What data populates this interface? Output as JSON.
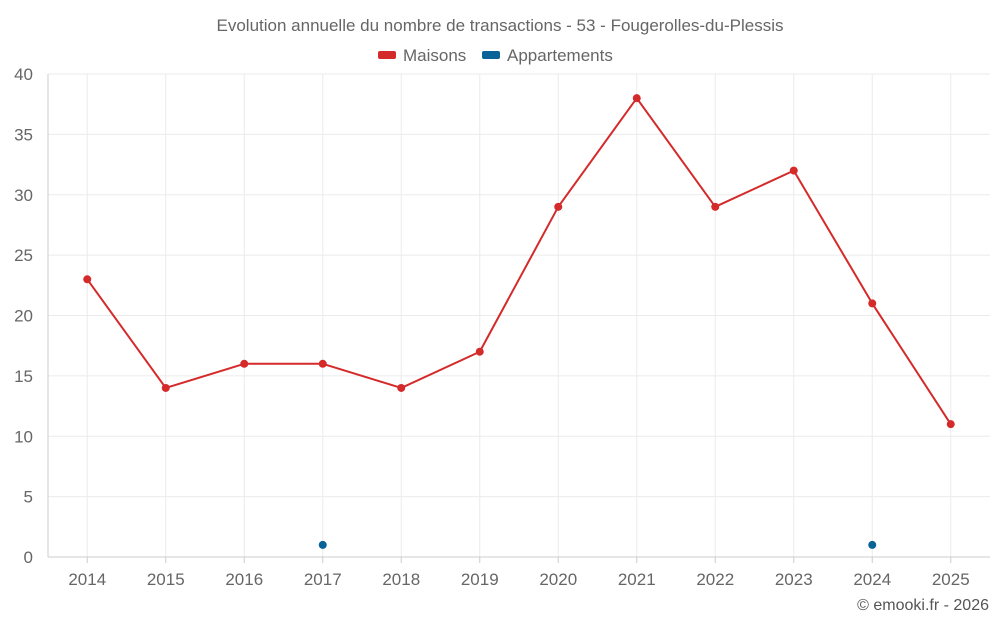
{
  "chart_data": {
    "type": "line",
    "title": "Evolution annuelle du nombre de transactions - 53 - Fougerolles-du-Plessis",
    "categories": [
      "2014",
      "2015",
      "2016",
      "2017",
      "2018",
      "2019",
      "2020",
      "2021",
      "2022",
      "2023",
      "2024",
      "2025"
    ],
    "ylim": [
      0,
      40
    ],
    "yticks": [
      0,
      5,
      10,
      15,
      20,
      25,
      30,
      35,
      40
    ],
    "grid": true,
    "legend_position": "top-center",
    "series": [
      {
        "name": "Maisons",
        "color": "#d42a2a",
        "values": [
          23,
          14,
          16,
          16,
          14,
          17,
          29,
          38,
          29,
          32,
          21,
          11
        ]
      },
      {
        "name": "Appartements",
        "color": "#0a6396",
        "values": [
          null,
          null,
          null,
          1,
          null,
          null,
          null,
          null,
          null,
          null,
          1,
          null
        ]
      }
    ],
    "xlabel": "",
    "ylabel": ""
  },
  "credit": "© emooki.fr - 2026"
}
